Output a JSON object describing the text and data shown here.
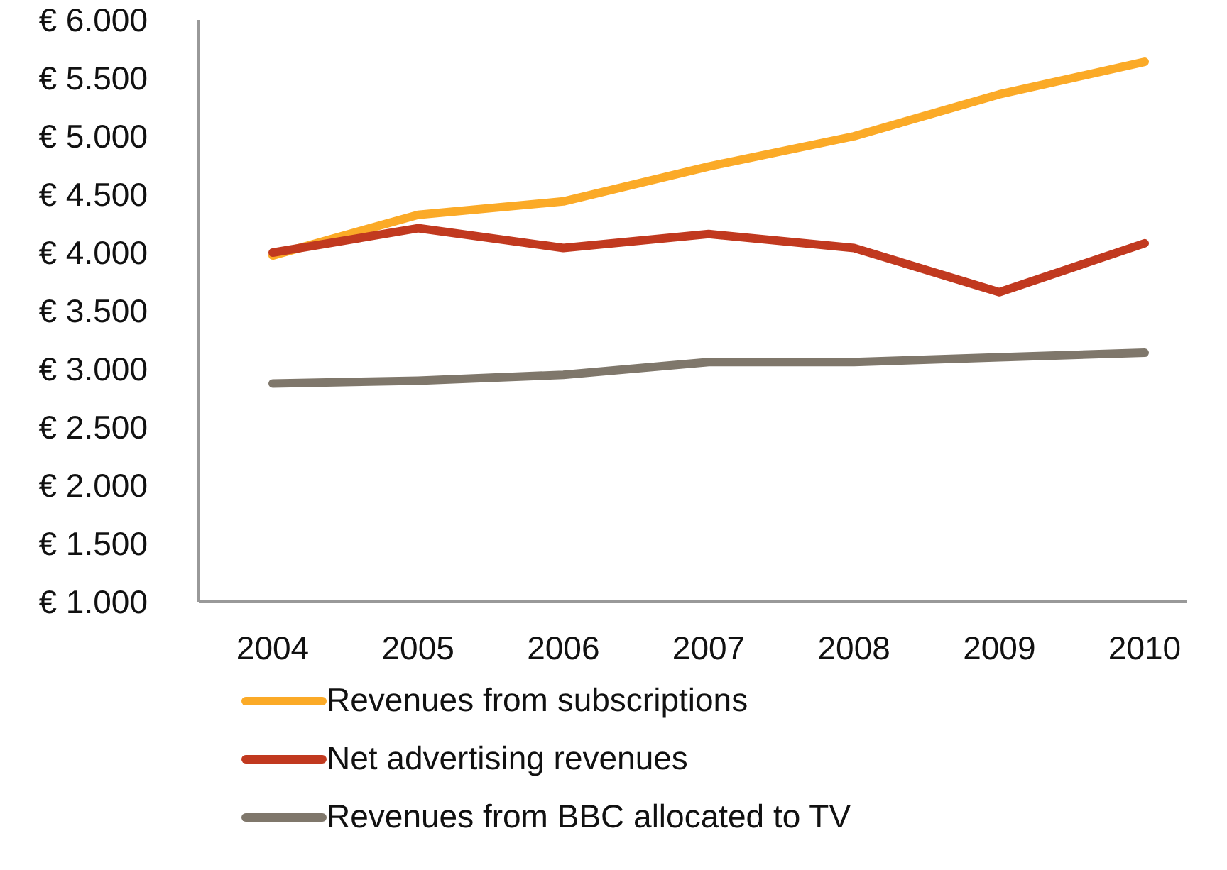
{
  "chart_data": {
    "type": "line",
    "categories": [
      "2004",
      "2005",
      "2006",
      "2007",
      "2008",
      "2009",
      "2010"
    ],
    "series": [
      {
        "name": "Revenues from subscriptions",
        "color": "#fbaa27",
        "values": [
          3975,
          4325,
          4440,
          4740,
          5000,
          5360,
          5640
        ]
      },
      {
        "name": "Net advertising revenues",
        "color": "#c1391f",
        "values": [
          4000,
          4210,
          4040,
          4160,
          4040,
          3660,
          4080
        ]
      },
      {
        "name": "Revenues from BBC allocated to TV",
        "color": "#7f776b",
        "values": [
          2875,
          2900,
          2950,
          3060,
          3060,
          3100,
          3140
        ]
      }
    ],
    "ylim": [
      1000,
      6000
    ],
    "yticks": [
      {
        "value": 1000,
        "label": "€ 1.000"
      },
      {
        "value": 1500,
        "label": "€ 1.500"
      },
      {
        "value": 2000,
        "label": "€ 2.000"
      },
      {
        "value": 2500,
        "label": "€ 2.500"
      },
      {
        "value": 3000,
        "label": "€ 3.000"
      },
      {
        "value": 3500,
        "label": "€ 3.500"
      },
      {
        "value": 4000,
        "label": "€ 4.000"
      },
      {
        "value": 4500,
        "label": "€ 4.500"
      },
      {
        "value": 5000,
        "label": "€ 5.000"
      },
      {
        "value": 5500,
        "label": "€ 5.500"
      },
      {
        "value": 6000,
        "label": "€ 6.000"
      }
    ],
    "grid": false,
    "legend": "bottom",
    "marker": "none",
    "line_style": "solid"
  }
}
